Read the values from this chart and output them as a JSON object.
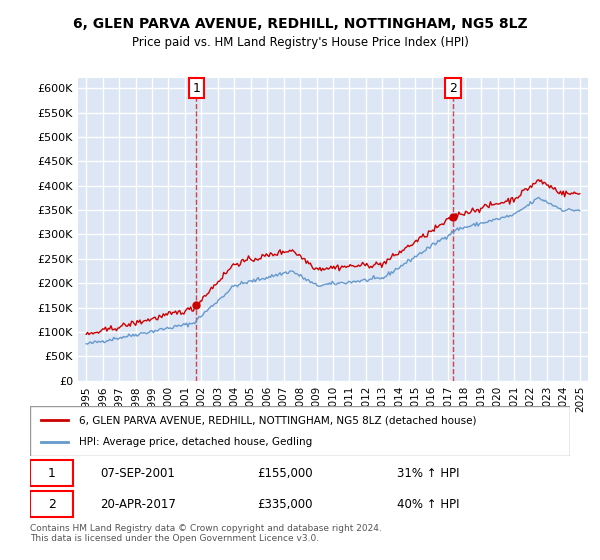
{
  "title": "6, GLEN PARVA AVENUE, REDHILL, NOTTINGHAM, NG5 8LZ",
  "subtitle": "Price paid vs. HM Land Registry's House Price Index (HPI)",
  "ylabel_ticks": [
    "£0",
    "£50K",
    "£100K",
    "£150K",
    "£200K",
    "£250K",
    "£300K",
    "£350K",
    "£400K",
    "£450K",
    "£500K",
    "£550K",
    "£600K"
  ],
  "ytick_values": [
    0,
    50000,
    100000,
    150000,
    200000,
    250000,
    300000,
    350000,
    400000,
    450000,
    500000,
    550000,
    600000
  ],
  "ylim": [
    0,
    620000
  ],
  "xlim_start": 1994.5,
  "xlim_end": 2025.5,
  "background_color": "#dce6f5",
  "plot_bg_color": "#dce6f5",
  "grid_color": "#ffffff",
  "red_line_color": "#cc0000",
  "blue_line_color": "#6699cc",
  "purchase1_year": 2001.69,
  "purchase1_price": 155000,
  "purchase2_year": 2017.3,
  "purchase2_price": 335000,
  "legend_label_red": "6, GLEN PARVA AVENUE, REDHILL, NOTTINGHAM, NG5 8LZ (detached house)",
  "legend_label_blue": "HPI: Average price, detached house, Gedling",
  "annotation1_date": "07-SEP-2001",
  "annotation1_price": "£155,000",
  "annotation1_hpi": "31% ↑ HPI",
  "annotation2_date": "20-APR-2017",
  "annotation2_price": "£335,000",
  "annotation2_hpi": "40% ↑ HPI",
  "footer": "Contains HM Land Registry data © Crown copyright and database right 2024.\nThis data is licensed under the Open Government Licence v3.0.",
  "xtick_years": [
    1995,
    1996,
    1997,
    1998,
    1999,
    2000,
    2001,
    2002,
    2003,
    2004,
    2005,
    2006,
    2007,
    2008,
    2009,
    2010,
    2011,
    2012,
    2013,
    2014,
    2015,
    2016,
    2017,
    2018,
    2019,
    2020,
    2021,
    2022,
    2023,
    2024,
    2025
  ]
}
